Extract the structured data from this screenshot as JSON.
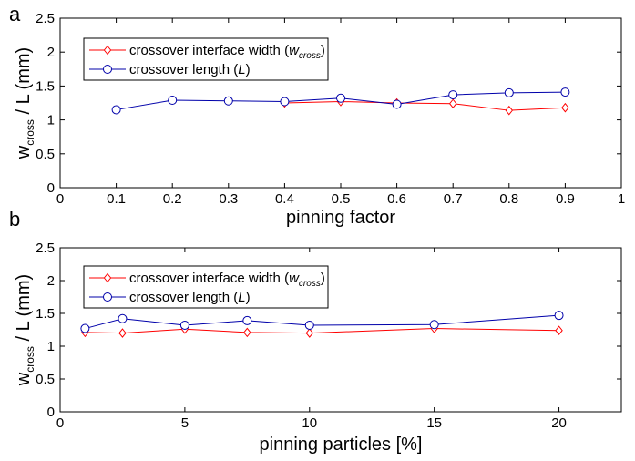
{
  "chart_data": [
    {
      "panel": "a",
      "type": "line",
      "xlabel": "pinning factor",
      "ylabel_main": "w",
      "ylabel_sub": "cross",
      "ylabel_tail": " / L (mm)",
      "xlim": [
        0,
        1
      ],
      "ylim": [
        0,
        2.5
      ],
      "xticks": [
        "0",
        "0.1",
        "0.2",
        "0.3",
        "0.4",
        "0.5",
        "0.6",
        "0.7",
        "0.8",
        "0.9",
        "1"
      ],
      "yticks": [
        "0",
        "0.5",
        "1",
        "1.5",
        "2",
        "2.5"
      ],
      "legend_position": "top-left",
      "series": [
        {
          "name_prefix": "crossover interface width (",
          "name_italic": "w",
          "name_sub": "cross",
          "name_suffix": ")",
          "color": "#ff0000",
          "marker": "diamond",
          "x": [
            0.4,
            0.5,
            0.6,
            0.7,
            0.8,
            0.9
          ],
          "y": [
            1.25,
            1.27,
            1.25,
            1.24,
            1.14,
            1.18
          ]
        },
        {
          "name_prefix": "crossover length (",
          "name_italic": "L",
          "name_sub": "",
          "name_suffix": ")",
          "color": "#0000aa",
          "marker": "circle",
          "x": [
            0.1,
            0.2,
            0.3,
            0.4,
            0.5,
            0.6,
            0.7,
            0.8,
            0.9
          ],
          "y": [
            1.15,
            1.29,
            1.28,
            1.27,
            1.32,
            1.23,
            1.37,
            1.4,
            1.41
          ]
        }
      ]
    },
    {
      "panel": "b",
      "type": "line",
      "xlabel": "pinning particles [%]",
      "ylabel_main": "w",
      "ylabel_sub": "cross",
      "ylabel_tail": " / L (mm)",
      "xlim": [
        0,
        22.5
      ],
      "ylim": [
        0,
        2.5
      ],
      "xticks": [
        "0",
        "5",
        "10",
        "15",
        "20"
      ],
      "yticks": [
        "0",
        "0.5",
        "1",
        "1.5",
        "2",
        "2.5"
      ],
      "legend_position": "top-left",
      "series": [
        {
          "name_prefix": "crossover interface width (",
          "name_italic": "w",
          "name_sub": "cross",
          "name_suffix": ")",
          "color": "#ff0000",
          "marker": "diamond",
          "x": [
            1,
            2.5,
            5,
            7.5,
            10,
            15,
            20
          ],
          "y": [
            1.21,
            1.2,
            1.26,
            1.21,
            1.2,
            1.27,
            1.24
          ]
        },
        {
          "name_prefix": "crossover length (",
          "name_italic": "L",
          "name_sub": "",
          "name_suffix": ")",
          "color": "#0000aa",
          "marker": "circle",
          "x": [
            1,
            2.5,
            5,
            7.5,
            10,
            15,
            20
          ],
          "y": [
            1.27,
            1.42,
            1.32,
            1.39,
            1.32,
            1.33,
            1.47
          ]
        }
      ]
    }
  ]
}
